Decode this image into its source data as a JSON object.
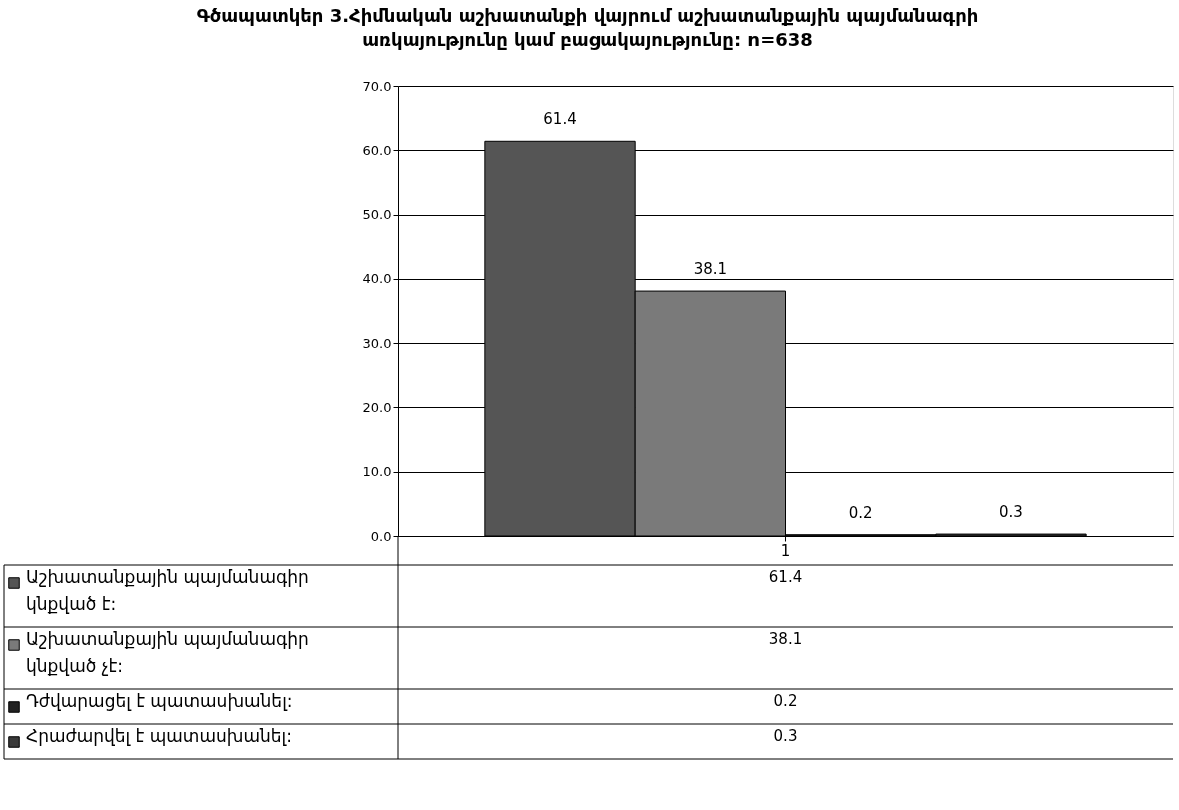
{
  "chart_data": {
    "type": "bar",
    "title": "Գծապատկեր 3.Հիմնական աշխատանքի վայրում աշխատանքային պայմանագրի առկայությունը կամ բացակայությունը: n=638",
    "categories": [
      "1"
    ],
    "series": [
      {
        "name": "Աշխատանքային պայմանագիր կնքված է:",
        "color": "#555555",
        "values": [
          61.4
        ],
        "value_labels": [
          "61.4"
        ]
      },
      {
        "name": "Աշխատանքային պայմանագիր կնքված չէ:",
        "color": "#7a7a7a",
        "values": [
          38.1
        ],
        "value_labels": [
          "38.1"
        ]
      },
      {
        "name": "Դժվարացել է պատասխանել:",
        "color": "#222222",
        "values": [
          0.2
        ],
        "value_labels": [
          "0.2"
        ]
      },
      {
        "name": "Հրաժարվել է պատասխանել:",
        "color": "#3a3a3a",
        "values": [
          0.3
        ],
        "value_labels": [
          "0.3"
        ]
      }
    ],
    "ylim": [
      0,
      70
    ],
    "yticks": [
      {
        "value": 0,
        "label": "0.0"
      },
      {
        "value": 10,
        "label": "10.0"
      },
      {
        "value": 20,
        "label": "20.0"
      },
      {
        "value": 30,
        "label": "30.0"
      },
      {
        "value": 40,
        "label": "40.0"
      },
      {
        "value": 50,
        "label": "50.0"
      },
      {
        "value": 60,
        "label": "60.0"
      },
      {
        "value": 70,
        "label": "70.0"
      }
    ],
    "grid": "y",
    "data_labels": true,
    "legend": "bottom",
    "annotations": [
      "61.4",
      "38.1",
      "0.2",
      "0.3"
    ]
  }
}
